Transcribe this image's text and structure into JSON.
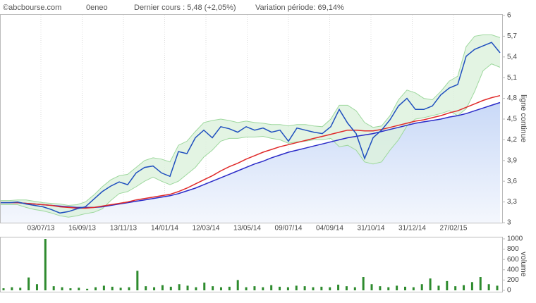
{
  "chart_data": [
    {
      "type": "line",
      "source": "©abcbourse.com",
      "title": "0eneo",
      "subtitle": "Dernier cours : 5,48 (+2,05%)",
      "annotation": "Variation période: 69,14%",
      "ylabel": "ligne continue",
      "xtick_labels": [
        "03/07/13",
        "16/09/13",
        "13/11/13",
        "14/01/14",
        "12/03/14",
        "13/05/14",
        "09/07/14",
        "04/09/14",
        "31/10/14",
        "31/12/14",
        "27/02/15"
      ],
      "ylim": [
        3,
        6
      ],
      "yticks": [
        3,
        {
          "value": 3.3,
          "label": "3,3"
        },
        {
          "value": 3.6,
          "label": "3,6"
        },
        {
          "value": 3.9,
          "label": "3,9"
        },
        {
          "value": 4.2,
          "label": "4,2"
        },
        {
          "value": 4.5,
          "label": "4,5"
        },
        {
          "value": 4.8,
          "label": "4,8"
        },
        {
          "value": 5.1,
          "label": "5,1"
        },
        {
          "value": 5.4,
          "label": "5,4"
        },
        {
          "value": 5.7,
          "label": "5,7"
        },
        6
      ],
      "grid": true,
      "bands": {
        "color": "#9ed89e",
        "fill": "#dcf1dc",
        "upper": [
          3.32,
          3.32,
          3.33,
          3.33,
          3.31,
          3.29,
          3.28,
          3.27,
          3.25,
          3.26,
          3.3,
          3.4,
          3.52,
          3.62,
          3.68,
          3.7,
          3.8,
          3.9,
          3.94,
          3.92,
          3.88,
          4.12,
          4.18,
          4.32,
          4.45,
          4.48,
          4.5,
          4.48,
          4.45,
          4.47,
          4.45,
          4.44,
          4.42,
          4.42,
          4.4,
          4.42,
          4.42,
          4.4,
          4.39,
          4.5,
          4.7,
          4.7,
          4.62,
          4.45,
          4.38,
          4.4,
          4.55,
          4.78,
          4.92,
          4.88,
          4.8,
          4.78,
          4.9,
          5.05,
          5.12,
          5.55,
          5.7,
          5.72,
          5.72,
          5.68
        ],
        "lower": [
          3.26,
          3.26,
          3.26,
          3.22,
          3.19,
          3.17,
          3.14,
          3.1,
          3.08,
          3.1,
          3.13,
          3.15,
          3.2,
          3.32,
          3.42,
          3.45,
          3.52,
          3.6,
          3.66,
          3.6,
          3.55,
          3.6,
          3.7,
          3.8,
          3.95,
          4.05,
          4.18,
          4.22,
          4.22,
          4.24,
          4.24,
          4.25,
          4.22,
          4.2,
          4.15,
          4.17,
          4.18,
          4.2,
          4.2,
          4.22,
          4.1,
          4.12,
          4.05,
          3.88,
          3.85,
          3.88,
          4.05,
          4.2,
          4.4,
          4.5,
          4.52,
          4.55,
          4.58,
          4.62,
          4.55,
          4.65,
          4.9,
          5.2,
          5.3,
          5.25
        ]
      },
      "series": [
        {
          "color": "#2a2ac8",
          "values": [
            3.29,
            3.29,
            3.29,
            3.28,
            3.27,
            3.26,
            3.25,
            3.24,
            3.23,
            3.22,
            3.22,
            3.22,
            3.23,
            3.25,
            3.27,
            3.29,
            3.31,
            3.33,
            3.35,
            3.37,
            3.39,
            3.42,
            3.46,
            3.5,
            3.55,
            3.6,
            3.65,
            3.7,
            3.75,
            3.8,
            3.85,
            3.89,
            3.94,
            3.98,
            4.02,
            4.05,
            4.08,
            4.11,
            4.14,
            4.17,
            4.2,
            4.23,
            4.25,
            4.27,
            4.29,
            4.32,
            4.35,
            4.38,
            4.41,
            4.44,
            4.46,
            4.48,
            4.5,
            4.53,
            4.55,
            4.58,
            4.62,
            4.66,
            4.7,
            4.74
          ]
        },
        {
          "color": "#e02a2a",
          "values": [
            3.29,
            3.29,
            3.29,
            3.28,
            3.27,
            3.26,
            3.25,
            3.23,
            3.22,
            3.21,
            3.21,
            3.22,
            3.24,
            3.26,
            3.28,
            3.3,
            3.33,
            3.35,
            3.37,
            3.39,
            3.41,
            3.45,
            3.5,
            3.56,
            3.62,
            3.68,
            3.75,
            3.81,
            3.86,
            3.92,
            3.97,
            4.02,
            4.06,
            4.1,
            4.13,
            4.16,
            4.19,
            4.22,
            4.25,
            4.28,
            4.31,
            4.34,
            4.34,
            4.33,
            4.33,
            4.35,
            4.38,
            4.41,
            4.44,
            4.47,
            4.49,
            4.52,
            4.55,
            4.59,
            4.62,
            4.67,
            4.72,
            4.77,
            4.81,
            4.84
          ]
        },
        {
          "color": "#1f4fbf",
          "values": [
            3.29,
            3.29,
            3.3,
            3.27,
            3.25,
            3.23,
            3.19,
            3.14,
            3.16,
            3.2,
            3.23,
            3.34,
            3.45,
            3.53,
            3.59,
            3.55,
            3.72,
            3.8,
            3.82,
            3.72,
            3.67,
            4.03,
            4.0,
            4.23,
            4.34,
            4.23,
            4.39,
            4.36,
            4.31,
            4.39,
            4.34,
            4.37,
            4.31,
            4.34,
            4.18,
            4.37,
            4.34,
            4.31,
            4.29,
            4.39,
            4.64,
            4.44,
            4.29,
            3.93,
            4.23,
            4.34,
            4.49,
            4.69,
            4.8,
            4.64,
            4.64,
            4.69,
            4.85,
            4.95,
            5.0,
            5.41,
            5.51,
            5.56,
            5.61,
            5.46
          ]
        }
      ]
    },
    {
      "type": "bar",
      "ylabel": "volume",
      "color": "#2e8b2e",
      "ylim": [
        0,
        1000
      ],
      "yticks": [
        0,
        200,
        400,
        600,
        800,
        1000
      ],
      "values": [
        40,
        60,
        50,
        250,
        120,
        1000,
        80,
        60,
        40,
        50,
        30,
        60,
        90,
        70,
        50,
        60,
        380,
        80,
        60,
        100,
        70,
        120,
        90,
        60,
        150,
        80,
        60,
        70,
        200,
        60,
        80,
        60,
        100,
        70,
        60,
        90,
        80,
        60,
        70,
        60,
        110,
        80,
        60,
        260,
        120,
        80,
        60,
        90,
        70,
        60,
        120,
        230,
        90,
        180,
        80,
        100,
        160,
        260,
        120,
        90
      ]
    }
  ]
}
